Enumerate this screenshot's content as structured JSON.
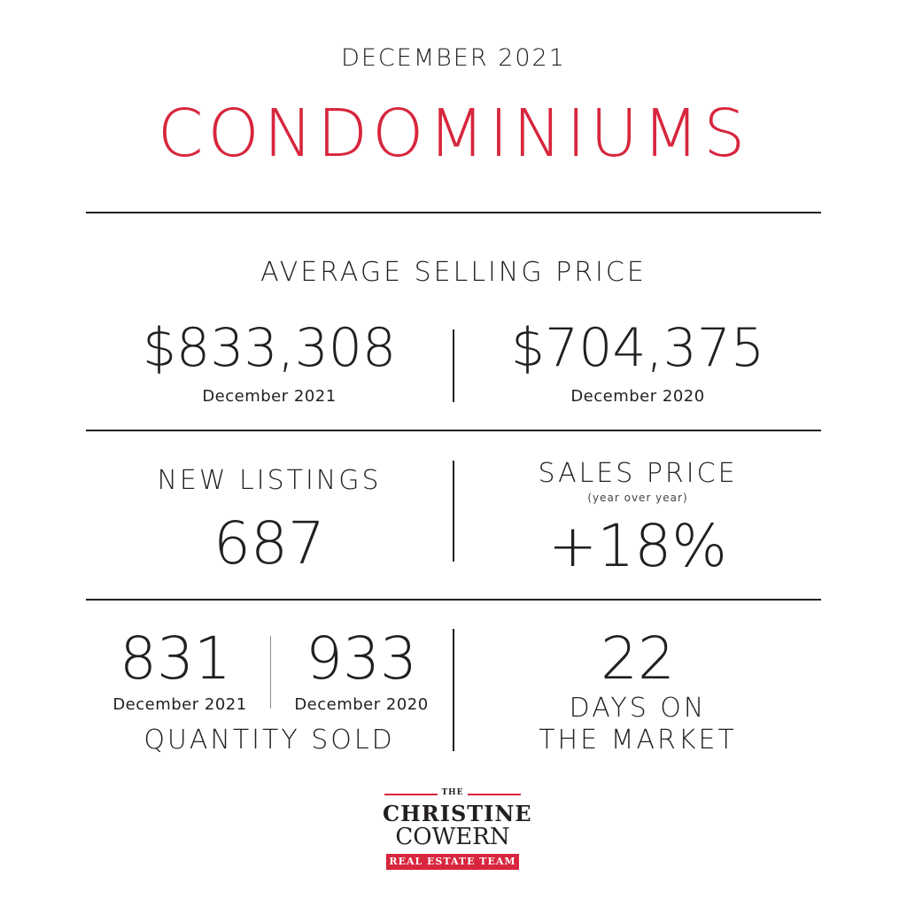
{
  "header": {
    "month": "DECEMBER 2021",
    "title": "CONDOMINIUMS"
  },
  "average_selling_price": {
    "label": "AVERAGE SELLING PRICE",
    "current": {
      "value": "$833,308",
      "period": "December 2021"
    },
    "previous": {
      "value": "$704,375",
      "period": "December 2020"
    }
  },
  "new_listings": {
    "label": "NEW LISTINGS",
    "value": "687"
  },
  "sales_price": {
    "label": "SALES PRICE",
    "sublabel": "(year over year)",
    "value": "+18%"
  },
  "quantity_sold": {
    "label": "QUANTITY SOLD",
    "current": {
      "value": "831",
      "period": "December 2021"
    },
    "previous": {
      "value": "933",
      "period": "December 2020"
    }
  },
  "days_on_market": {
    "value": "22",
    "label_line1": "DAYS ON",
    "label_line2": "THE MARKET"
  },
  "logo": {
    "the": "THE",
    "name1": "CHRISTINE",
    "name2": "COWERN",
    "team": "REAL ESTATE TEAM"
  },
  "colors": {
    "accent": "#d7263d",
    "text": "#231f20"
  }
}
